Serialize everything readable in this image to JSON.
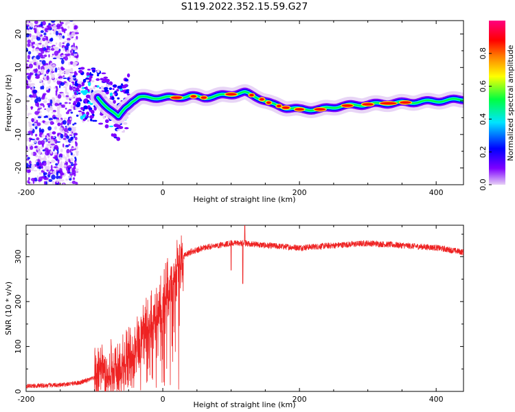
{
  "title": "S119.2022.352.15.59.G27",
  "chart_data": [
    {
      "type": "heatmap",
      "xlabel": "Height of straight line (km)",
      "ylabel": "Frequency (Hz)",
      "xlim": [
        -200,
        440
      ],
      "ylim": [
        -25,
        24
      ],
      "xticks": [
        "-200",
        "0",
        "200",
        "400"
      ],
      "yticks": [
        "-20",
        "-10",
        "0",
        "10",
        "20"
      ],
      "colorbar": {
        "label": "Normalized spectral amplitude",
        "range": [
          0,
          1
        ],
        "ticks": [
          "0.0",
          "0.2",
          "0.4",
          "0.6",
          "0.8"
        ],
        "colors": [
          "#e6d0f5",
          "#7e00ff",
          "#0000ff",
          "#00e5ff",
          "#00ff40",
          "#ffff00",
          "#ff8000",
          "#ff0000",
          "#ff0080"
        ]
      },
      "ridge": {
        "x": [
          -95,
          -80,
          -65,
          -55,
          -45,
          -35,
          -20,
          0,
          20,
          40,
          60,
          80,
          100,
          120,
          140,
          160,
          180,
          200,
          230,
          260,
          300,
          350,
          400,
          440
        ],
        "y": [
          1,
          -2,
          -5,
          -2,
          0,
          1,
          1,
          1,
          1,
          1.5,
          1,
          1.5,
          2,
          2.5,
          1,
          -1,
          -2,
          -2.5,
          -2.5,
          -1.5,
          -1,
          -0.5,
          0,
          0.5
        ]
      }
    },
    {
      "type": "line",
      "xlabel": "Height of straight line (km)",
      "ylabel": "SNR (10 * v/v)",
      "xlim": [
        -200,
        440
      ],
      "ylim": [
        0,
        370
      ],
      "xticks": [
        "-200",
        "0",
        "200",
        "400"
      ],
      "yticks": [
        "0",
        "100",
        "200",
        "300"
      ],
      "color": "#ee2222",
      "series": [
        {
          "x": [
            -200,
            -150,
            -120,
            -100,
            -80,
            -60,
            -50,
            -40,
            -30,
            -20,
            -10,
            0,
            10,
            20,
            30,
            40,
            60,
            80,
            100,
            120,
            150,
            200,
            250,
            300,
            350,
            400,
            440
          ],
          "y": [
            12,
            14,
            20,
            30,
            45,
            60,
            80,
            100,
            130,
            150,
            170,
            200,
            240,
            270,
            300,
            310,
            320,
            325,
            330,
            330,
            325,
            320,
            325,
            330,
            325,
            320,
            310
          ]
        }
      ]
    }
  ]
}
